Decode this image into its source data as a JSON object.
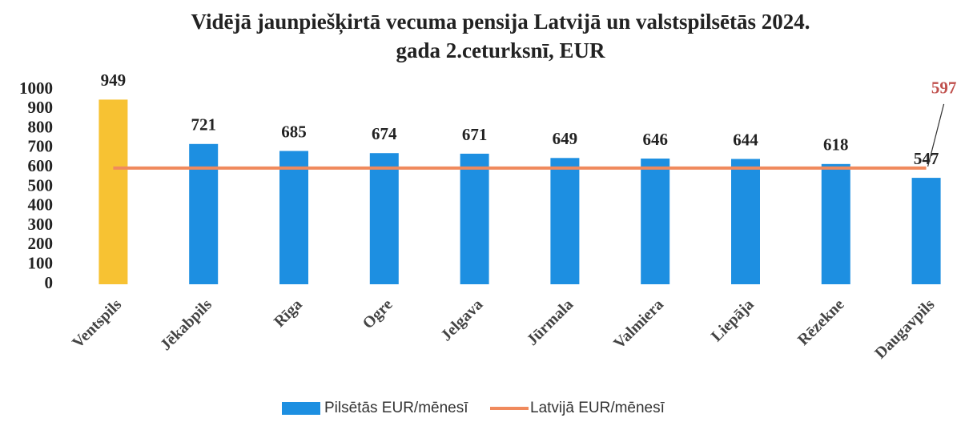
{
  "chart_data": {
    "type": "bar",
    "title": [
      "Vidējā jaunpiešķirtā vecuma pensija Latvijā un valstspilsētās 2024.",
      "gada 2.ceturksnī, EUR"
    ],
    "categories": [
      "Ventspils",
      "Jēkabpils",
      "Rīga",
      "Ogre",
      "Jelgava",
      "Jūrmala",
      "Valmiera",
      "Liepāja",
      "Rēzekne",
      "Daugavpils"
    ],
    "series": [
      {
        "name": "Pilsētās EUR/mēnesī",
        "type": "bar",
        "color": "#1d8fe1",
        "colors": [
          "#f7c233",
          "#1d8fe1",
          "#1d8fe1",
          "#1d8fe1",
          "#1d8fe1",
          "#1d8fe1",
          "#1d8fe1",
          "#1d8fe1",
          "#1d8fe1",
          "#1d8fe1"
        ],
        "values": [
          949,
          721,
          685,
          674,
          671,
          649,
          646,
          644,
          618,
          547
        ]
      },
      {
        "name": "Latvijā EUR/mēnesī",
        "type": "line",
        "color": "#f08a5d",
        "label_color": "#c0504d",
        "values": [
          597,
          597,
          597,
          597,
          597,
          597,
          597,
          597,
          597,
          597
        ]
      }
    ],
    "ylim": [
      0,
      1000
    ],
    "yticks": [
      0,
      100,
      200,
      300,
      400,
      500,
      600,
      700,
      800,
      900,
      1000
    ],
    "grid": false,
    "legend": "bottom"
  }
}
